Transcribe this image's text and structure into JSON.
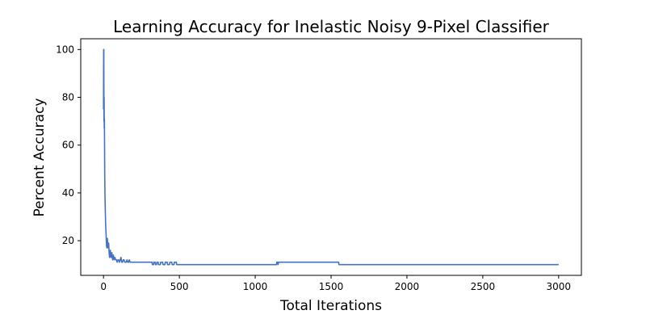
{
  "chart_data": {
    "type": "line",
    "title": "Learning Accuracy for Inelastic Noisy 9-Pixel Classifier",
    "xlabel": "Total Iterations",
    "ylabel": "Percent Accuracy",
    "xlim": [
      -150,
      3150
    ],
    "ylim": [
      5.5,
      104.5
    ],
    "xticks": [
      0,
      500,
      1000,
      1500,
      2000,
      2500,
      3000
    ],
    "yticks": [
      20,
      40,
      60,
      80,
      100
    ],
    "grid": false,
    "legend": "none",
    "line_color": "#4472c4",
    "series": [
      {
        "x": [
          0,
          1,
          2,
          3,
          4,
          5,
          6,
          7,
          8,
          10,
          12,
          14,
          16,
          18,
          20,
          22,
          25,
          28,
          31,
          34,
          37,
          40,
          45,
          50,
          55,
          60,
          65,
          70,
          75,
          80,
          85,
          90,
          95,
          100,
          105,
          110,
          115,
          120,
          125,
          130,
          135,
          140,
          145,
          150,
          155,
          160,
          165,
          170,
          175,
          180,
          185,
          190,
          195,
          200,
          205,
          210,
          215,
          220,
          225,
          230,
          240,
          250,
          300,
          320,
          322,
          330,
          332,
          340,
          342,
          350,
          352,
          360,
          362,
          375,
          377,
          390,
          392,
          405,
          407,
          420,
          422,
          435,
          437,
          450,
          452,
          465,
          467,
          480,
          482,
          495,
          497,
          510,
          1140,
          1142,
          1148,
          1150,
          1155,
          1550,
          1552,
          3000
        ],
        "y": [
          75,
          100,
          100,
          70,
          80,
          67,
          71,
          60,
          48,
          38,
          32,
          27,
          24,
          21,
          18,
          17,
          21,
          18,
          17,
          19,
          15,
          13,
          16,
          13,
          15,
          12,
          14,
          12,
          13,
          12,
          12,
          11,
          12,
          12,
          11,
          12,
          13,
          11,
          11,
          12,
          12,
          11,
          11,
          11,
          12,
          11,
          11,
          12,
          11,
          11,
          11,
          11,
          11,
          11,
          11,
          11,
          11,
          11,
          11,
          11,
          11,
          11,
          11,
          11,
          10,
          10,
          11,
          11,
          10,
          10,
          11,
          11,
          10,
          10,
          11,
          11,
          10,
          10,
          11,
          11,
          10,
          10,
          11,
          11,
          10,
          10,
          11,
          11,
          10,
          10,
          10,
          10,
          10,
          11,
          11,
          10,
          11,
          11,
          10,
          10
        ]
      }
    ]
  }
}
